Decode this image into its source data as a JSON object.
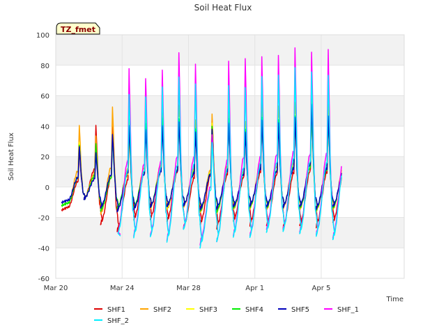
{
  "chart_data": {
    "type": "line",
    "title": "Soil Heat Flux",
    "xlabel": "Time",
    "ylabel": "Soil Heat Flux",
    "badge": "TZ_fmet",
    "xlim": [
      0,
      21
    ],
    "ylim": [
      -60,
      100
    ],
    "yticks": [
      -60,
      -40,
      -20,
      0,
      20,
      40,
      60,
      80,
      100
    ],
    "xticks": [
      {
        "value": 0,
        "label": "Mar 20"
      },
      {
        "value": 4,
        "label": "Mar 24"
      },
      {
        "value": 8,
        "label": "Mar 28"
      },
      {
        "value": 12,
        "label": "Apr 1"
      },
      {
        "value": 16,
        "label": "Apr 5"
      }
    ],
    "band_color": "#f2f2f2",
    "grid": true,
    "legend_position": "bottom",
    "peak_phase": 0.42,
    "series": [
      {
        "name": "SHF1",
        "color": "#dd0000",
        "start_day": 0.35,
        "peaks": [
          24,
          40,
          40,
          38,
          45,
          48,
          50,
          40,
          45,
          47,
          40,
          50,
          48,
          50,
          54,
          50,
          47,
          45
        ],
        "troughs": [
          -15,
          -8,
          -25,
          -29,
          -22,
          -21,
          -23,
          -27,
          -25,
          -27,
          -23,
          -25,
          -26,
          -27,
          -26,
          -26,
          -24,
          -22,
          -12
        ]
      },
      {
        "name": "SHF2",
        "color": "#ffa500",
        "start_day": 0.35,
        "peaks": [
          41,
          33,
          53,
          47,
          50,
          52,
          54,
          44,
          48,
          52,
          43,
          55,
          53,
          56,
          58,
          55,
          52,
          50
        ],
        "troughs": [
          -12,
          -8,
          -18,
          -16,
          -15,
          -14,
          -15,
          -13,
          -17,
          -17,
          -15,
          -14,
          -15,
          -14,
          -15,
          -16,
          -15,
          -13,
          -10
        ]
      },
      {
        "name": "SHF3",
        "color": "#ffff00",
        "start_day": 0.35,
        "peaks": [
          30,
          25,
          35,
          35,
          40,
          45,
          46,
          38,
          42,
          45,
          39,
          46,
          45,
          48,
          50,
          46,
          45,
          42
        ],
        "troughs": [
          -12,
          -8,
          -15,
          -14,
          -14,
          -13,
          -14,
          -12,
          -16,
          -16,
          -14,
          -13,
          -14,
          -13,
          -14,
          -15,
          -14,
          -12,
          -9
        ]
      },
      {
        "name": "SHF4",
        "color": "#00ee00",
        "start_day": 0.35,
        "peaks": [
          28,
          28,
          32,
          40,
          42,
          45,
          45,
          38,
          40,
          45,
          38,
          46,
          44,
          47,
          49,
          46,
          44,
          42
        ],
        "troughs": [
          -12,
          -8,
          -16,
          -14,
          -14,
          -13,
          -13,
          -12,
          -16,
          -16,
          -14,
          -13,
          -14,
          -13,
          -14,
          -15,
          -14,
          -12,
          -9
        ]
      },
      {
        "name": "SHF5",
        "color": "#0000bb",
        "start_day": 0.35,
        "peaks": [
          27,
          22,
          35,
          40,
          38,
          40,
          43,
          36,
          38,
          42,
          36,
          44,
          42,
          46,
          54,
          47,
          43,
          42
        ],
        "troughs": [
          -10,
          -8,
          -14,
          -16,
          -15,
          -13,
          -13,
          -12,
          -15,
          -14,
          -13,
          -12,
          -13,
          -13,
          -13,
          -14,
          -13,
          -12,
          -9
        ]
      },
      {
        "name": "SHF_1",
        "color": "#ff00ff",
        "start_day": 3.9,
        "peaks": [
          77,
          72,
          76,
          89,
          80,
          35,
          82,
          85,
          85,
          87,
          91,
          89,
          90,
          85
        ],
        "troughs": [
          -32,
          -32,
          -32,
          -35,
          -27,
          -38,
          -36,
          -32,
          -32,
          -28,
          -28,
          -30,
          -31,
          -34,
          -25
        ]
      },
      {
        "name": "SHF_2",
        "color": "#00eeff",
        "start_day": 3.9,
        "peaks": [
          60,
          60,
          65,
          73,
          67,
          30,
          66,
          66,
          72,
          74,
          78,
          76,
          73,
          66
        ],
        "troughs": [
          -33,
          -33,
          -33,
          -36,
          -28,
          -40,
          -36,
          -33,
          -33,
          -30,
          -29,
          -31,
          -32,
          -35,
          -26
        ]
      }
    ],
    "legend": [
      "SHF1",
      "SHF2",
      "SHF3",
      "SHF4",
      "SHF5",
      "SHF_1",
      "SHF_2"
    ]
  }
}
